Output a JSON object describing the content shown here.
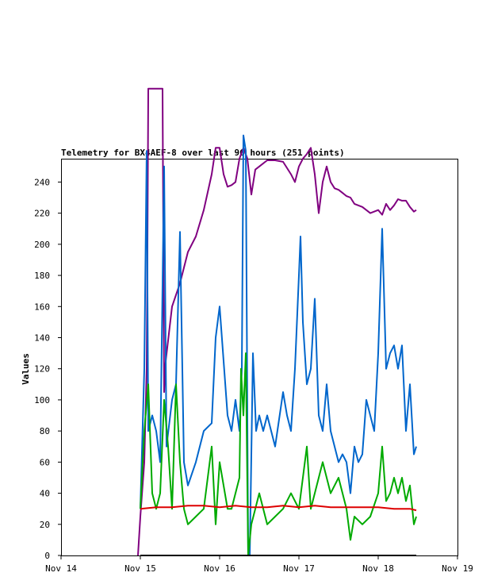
{
  "chart_data": {
    "type": "line",
    "title": "Telemetry for BX4AEF-8 over last 96 hours (251 points)",
    "xlabel": "",
    "ylabel": "Values",
    "x_ticks": [
      "Nov 14",
      "Nov 15",
      "Nov 16",
      "Nov 17",
      "Nov 18",
      "Nov 19"
    ],
    "x_range": [
      "Nov 14",
      "Nov 19"
    ],
    "y_ticks": [
      0,
      20,
      40,
      60,
      80,
      100,
      120,
      140,
      160,
      180,
      200,
      220,
      240
    ],
    "ylim": [
      0,
      255
    ],
    "grid": false,
    "legend": "none",
    "series": [
      {
        "color": "#800080",
        "x": [
          14.97,
          15.0,
          15.05,
          15.08,
          15.09,
          15.1,
          15.28,
          15.3,
          15.32,
          15.4,
          15.5,
          15.6,
          15.7,
          15.8,
          15.9,
          15.95,
          16.0,
          16.05,
          16.1,
          16.15,
          16.2,
          16.25,
          16.3,
          16.35,
          16.4,
          16.45,
          16.5,
          16.6,
          16.7,
          16.8,
          16.9,
          16.95,
          17.0,
          17.05,
          17.1,
          17.15,
          17.2,
          17.25,
          17.3,
          17.35,
          17.4,
          17.45,
          17.5,
          17.55,
          17.6,
          17.65,
          17.7,
          17.8,
          17.9,
          18.0,
          18.05,
          18.1,
          18.15,
          18.2,
          18.25,
          18.3,
          18.35,
          18.4,
          18.45,
          18.48
        ],
        "values": [
          0,
          25,
          60,
          120,
          200,
          300,
          300,
          105,
          125,
          160,
          175,
          195,
          205,
          222,
          245,
          262,
          262,
          245,
          237,
          238,
          240,
          255,
          262,
          255,
          232,
          248,
          250,
          254,
          254,
          253,
          245,
          240,
          250,
          255,
          258,
          262,
          245,
          220,
          240,
          250,
          240,
          236,
          235,
          233,
          231,
          230,
          226,
          224,
          220,
          222,
          219,
          226,
          222,
          225,
          229,
          228,
          228,
          224,
          221,
          222
        ]
      },
      {
        "color": "#0066cc",
        "x": [
          15.0,
          15.05,
          15.08,
          15.1,
          15.15,
          15.2,
          15.25,
          15.3,
          15.33,
          15.4,
          15.45,
          15.5,
          15.55,
          15.6,
          15.7,
          15.8,
          15.9,
          15.95,
          16.0,
          16.05,
          16.1,
          16.15,
          16.2,
          16.25,
          16.28,
          16.3,
          16.33,
          16.36,
          16.38,
          16.42,
          16.46,
          16.5,
          16.55,
          16.6,
          16.7,
          16.8,
          16.85,
          16.9,
          16.95,
          17.0,
          17.02,
          17.05,
          17.1,
          17.15,
          17.2,
          17.25,
          17.3,
          17.35,
          17.4,
          17.45,
          17.5,
          17.55,
          17.6,
          17.65,
          17.7,
          17.75,
          17.8,
          17.85,
          17.9,
          17.95,
          18.0,
          18.05,
          18.1,
          18.15,
          18.2,
          18.25,
          18.3,
          18.35,
          18.4,
          18.45,
          18.48
        ],
        "values": [
          30,
          120,
          260,
          80,
          90,
          80,
          60,
          250,
          70,
          100,
          110,
          208,
          60,
          45,
          60,
          80,
          85,
          140,
          160,
          125,
          90,
          80,
          100,
          80,
          120,
          270,
          260,
          0,
          0,
          130,
          80,
          90,
          80,
          90,
          70,
          105,
          90,
          80,
          120,
          180,
          205,
          150,
          110,
          120,
          165,
          90,
          80,
          110,
          80,
          70,
          60,
          65,
          60,
          40,
          70,
          60,
          65,
          100,
          90,
          80,
          130,
          210,
          120,
          130,
          135,
          120,
          135,
          80,
          110,
          65,
          70
        ]
      },
      {
        "color": "#00aa00",
        "x": [
          15.0,
          15.05,
          15.1,
          15.15,
          15.2,
          15.25,
          15.3,
          15.35,
          15.4,
          15.45,
          15.5,
          15.55,
          15.6,
          15.7,
          15.8,
          15.9,
          15.95,
          16.0,
          16.05,
          16.1,
          16.15,
          16.2,
          16.25,
          16.27,
          16.3,
          16.33,
          16.36,
          16.4,
          16.45,
          16.5,
          16.6,
          16.7,
          16.8,
          16.9,
          17.0,
          17.05,
          17.1,
          17.15,
          17.2,
          17.3,
          17.4,
          17.5,
          17.6,
          17.65,
          17.7,
          17.8,
          17.9,
          18.0,
          18.05,
          18.1,
          18.15,
          18.2,
          18.25,
          18.3,
          18.35,
          18.4,
          18.45,
          18.48
        ],
        "values": [
          30,
          80,
          110,
          40,
          30,
          40,
          100,
          70,
          30,
          110,
          60,
          30,
          20,
          25,
          30,
          70,
          20,
          60,
          45,
          30,
          30,
          40,
          50,
          120,
          90,
          130,
          0,
          20,
          30,
          40,
          20,
          25,
          30,
          40,
          30,
          50,
          70,
          30,
          40,
          60,
          40,
          50,
          30,
          10,
          25,
          20,
          25,
          40,
          70,
          35,
          40,
          50,
          40,
          50,
          35,
          45,
          20,
          25
        ]
      },
      {
        "color": "#dd0000",
        "x": [
          15.0,
          15.2,
          15.4,
          15.6,
          15.8,
          16.0,
          16.2,
          16.4,
          16.6,
          16.8,
          17.0,
          17.2,
          17.4,
          17.6,
          17.8,
          18.0,
          18.2,
          18.4,
          18.48
        ],
        "values": [
          30,
          31,
          31,
          32,
          32,
          31,
          32,
          31,
          31,
          32,
          31,
          32,
          31,
          31,
          31,
          31,
          30,
          30,
          29
        ]
      },
      {
        "color": "#000000",
        "x": [
          15.0,
          18.48
        ],
        "values": [
          0,
          0
        ]
      }
    ]
  }
}
